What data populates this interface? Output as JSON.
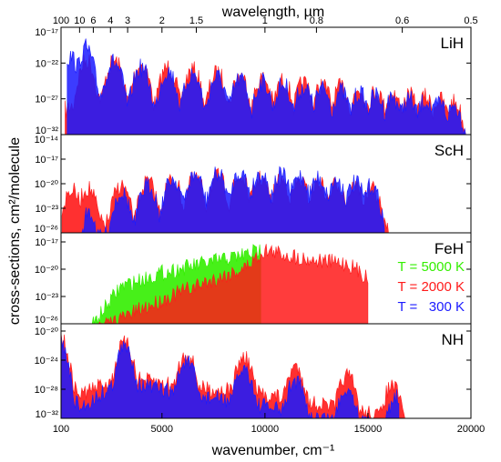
{
  "chart_data": {
    "type": "area",
    "top_axis": {
      "label": "wavelength, µm",
      "ticks": [
        {
          "label": "100",
          "wavelength_um": 100
        },
        {
          "label": "10",
          "wavelength_um": 10
        },
        {
          "label": "6",
          "wavelength_um": 6
        },
        {
          "label": "4",
          "wavelength_um": 4
        },
        {
          "label": "3",
          "wavelength_um": 3
        },
        {
          "label": "2",
          "wavelength_um": 2
        },
        {
          "label": "1.5",
          "wavelength_um": 1.5
        },
        {
          "label": "1",
          "wavelength_um": 1
        },
        {
          "label": "0.8",
          "wavelength_um": 0.8
        },
        {
          "label": "0.6",
          "wavelength_um": 0.6
        },
        {
          "label": "0.5",
          "wavelength_um": 0.5
        }
      ]
    },
    "x_axis": {
      "label": "wavenumber, cm⁻¹",
      "range": [
        100,
        20000
      ],
      "ticks": [
        {
          "label": "100",
          "value": 100
        },
        {
          "label": "5000",
          "value": 5000
        },
        {
          "label": "10000",
          "value": 10000
        },
        {
          "label": "15000",
          "value": 15000
        },
        {
          "label": "20000",
          "value": 20000
        }
      ]
    },
    "y_axis": {
      "label": "cross-sections, cm²/molecule",
      "scale": "log"
    },
    "legend": {
      "placement": "right of FeH panel",
      "entries": [
        {
          "label": "T = 5000 K",
          "color": "#33ee00"
        },
        {
          "label": "T = 2000 K",
          "color": "#ff1a1a"
        },
        {
          "label": "T =   300 K",
          "color": "#1a1aff"
        }
      ]
    },
    "panels": [
      {
        "name": "LiH",
        "ylim_exp": [
          -32,
          -17
        ],
        "yticks": [
          {
            "label": "10⁻¹⁷",
            "exp": -17
          },
          {
            "label": "10⁻²²",
            "exp": -22
          },
          {
            "label": "10⁻²⁷",
            "exp": -27
          },
          {
            "label": "10⁻³²",
            "exp": -32
          }
        ],
        "series": [
          {
            "color": "#ff1a1a",
            "band_centers": [
              1300,
              2700,
              4000,
              5300,
              6500,
              7700,
              8800,
              9900,
              10900,
              11900,
              12800,
              13700,
              14600,
              15400,
              16200,
              17000,
              17800,
              18500,
              19200
            ],
            "envelope": {
              "x": [
                300,
                1500,
                3000,
                6000,
                9000,
                12000,
                15000,
                18000,
                19800
              ],
              "y_exp": [
                -22,
                -20,
                -20.5,
                -21.5,
                -22.5,
                -23.5,
                -24.5,
                -25.5,
                -26.5
              ]
            }
          },
          {
            "color": "#1a1aff",
            "band_centers": [
              500,
              1300,
              2700,
              4000,
              5300,
              6500,
              7700,
              8800,
              9900,
              10900,
              11900,
              12800,
              13700,
              14600,
              15400,
              16200,
              17000,
              17800,
              18500,
              19200
            ],
            "envelope": {
              "x": [
                400,
                1300,
                3000,
                6000,
                9000,
                12000,
                15000,
                18000,
                19800
              ],
              "y_exp": [
                -20,
                -18.5,
                -21,
                -22,
                -23,
                -24,
                -25,
                -26,
                -27
              ]
            }
          }
        ]
      },
      {
        "name": "ScH",
        "ylim_exp": [
          -26,
          -14
        ],
        "yticks": [
          {
            "label": "10⁻¹⁴",
            "exp": -14
          },
          {
            "label": "10⁻¹⁷",
            "exp": -17
          },
          {
            "label": "10⁻²⁰",
            "exp": -20
          },
          {
            "label": "10⁻²³",
            "exp": -23
          },
          {
            "label": "10⁻²⁶",
            "exp": -26
          }
        ],
        "series": [
          {
            "color": "#ff1a1a",
            "band_centers": [
              600,
              1400,
              3000,
              4300,
              5500,
              6600,
              7700,
              8800,
              9800,
              10800,
              11700,
              12600,
              13500,
              14400,
              15200
            ],
            "envelope": {
              "x": [
                150,
                1000,
                2000,
                5000,
                8000,
                11000,
                14000,
                16000
              ],
              "y_exp": [
                -20,
                -19.5,
                -19.5,
                -18.5,
                -18,
                -18.5,
                -19,
                -20
              ]
            }
          },
          {
            "color": "#1a1aff",
            "band_centers": [
              1300,
              3000,
              4300,
              5500,
              6600,
              7700,
              8800,
              9800,
              10800,
              11700,
              12600,
              13500,
              14400,
              15200
            ],
            "envelope": {
              "x": [
                1000,
                1400,
                3000,
                6000,
                9000,
                12000,
                15000,
                15800
              ],
              "y_exp": [
                -26,
                -22,
                -20,
                -18,
                -17.5,
                -18,
                -19,
                -20
              ]
            }
          }
        ]
      },
      {
        "name": "FeH",
        "ylim_exp": [
          -26,
          -16
        ],
        "yticks": [
          {
            "label": "10⁻¹⁷",
            "exp": -17
          },
          {
            "label": "10⁻²⁰",
            "exp": -20
          },
          {
            "label": "10⁻²³",
            "exp": -23
          },
          {
            "label": "10⁻²⁶",
            "exp": -26
          }
        ],
        "series": [
          {
            "color": "#33ee00",
            "envelope": {
              "x": [
                1400,
                3000,
                5000,
                7000,
                9000,
                9800
              ],
              "y_exp": [
                -26,
                -21,
                -19.5,
                -18.5,
                -17.5,
                -17
              ]
            }
          },
          {
            "color": "#ff1a1a",
            "envelope": {
              "x": [
                1500,
                3000,
                6000,
                9000,
                10000,
                12000,
                14000,
                15000
              ],
              "y_exp": [
                -26,
                -24.5,
                -21.5,
                -19,
                -17,
                -18,
                -18.5,
                -20
              ]
            }
          },
          {
            "color": "#1a1aff",
            "envelope": {
              "x": [],
              "y_exp": []
            }
          }
        ]
      },
      {
        "name": "NH",
        "ylim_exp": [
          -32,
          -19
        ],
        "yticks": [
          {
            "label": "10⁻²⁰",
            "exp": -20
          },
          {
            "label": "10⁻²⁴",
            "exp": -24
          },
          {
            "label": "10⁻²⁸",
            "exp": -28
          },
          {
            "label": "10⁻³²",
            "exp": -32
          }
        ],
        "series": [
          {
            "color": "#ff1a1a",
            "band_centers": [
              100,
              3200,
              6200,
              9000,
              11500,
              14000,
              16200
            ],
            "envelope": {
              "x": [
                100,
                1000,
                3000,
                6000,
                9000,
                12000,
                15000,
                16900
              ],
              "y_exp": [
                -19.5,
                -23,
                -20.5,
                -22,
                -22.5,
                -24,
                -25.5,
                -27
              ]
            }
          },
          {
            "color": "#1a1aff",
            "band_centers": [
              100,
              3200,
              6200,
              9000,
              11500,
              14000,
              16400
            ],
            "envelope": {
              "x": [
                100,
                1000,
                3000,
                6000,
                9000,
                12000,
                15000,
                16500
              ],
              "y_exp": [
                -20,
                -25,
                -21,
                -23,
                -24,
                -26,
                -27,
                -28
              ]
            }
          }
        ]
      }
    ]
  }
}
